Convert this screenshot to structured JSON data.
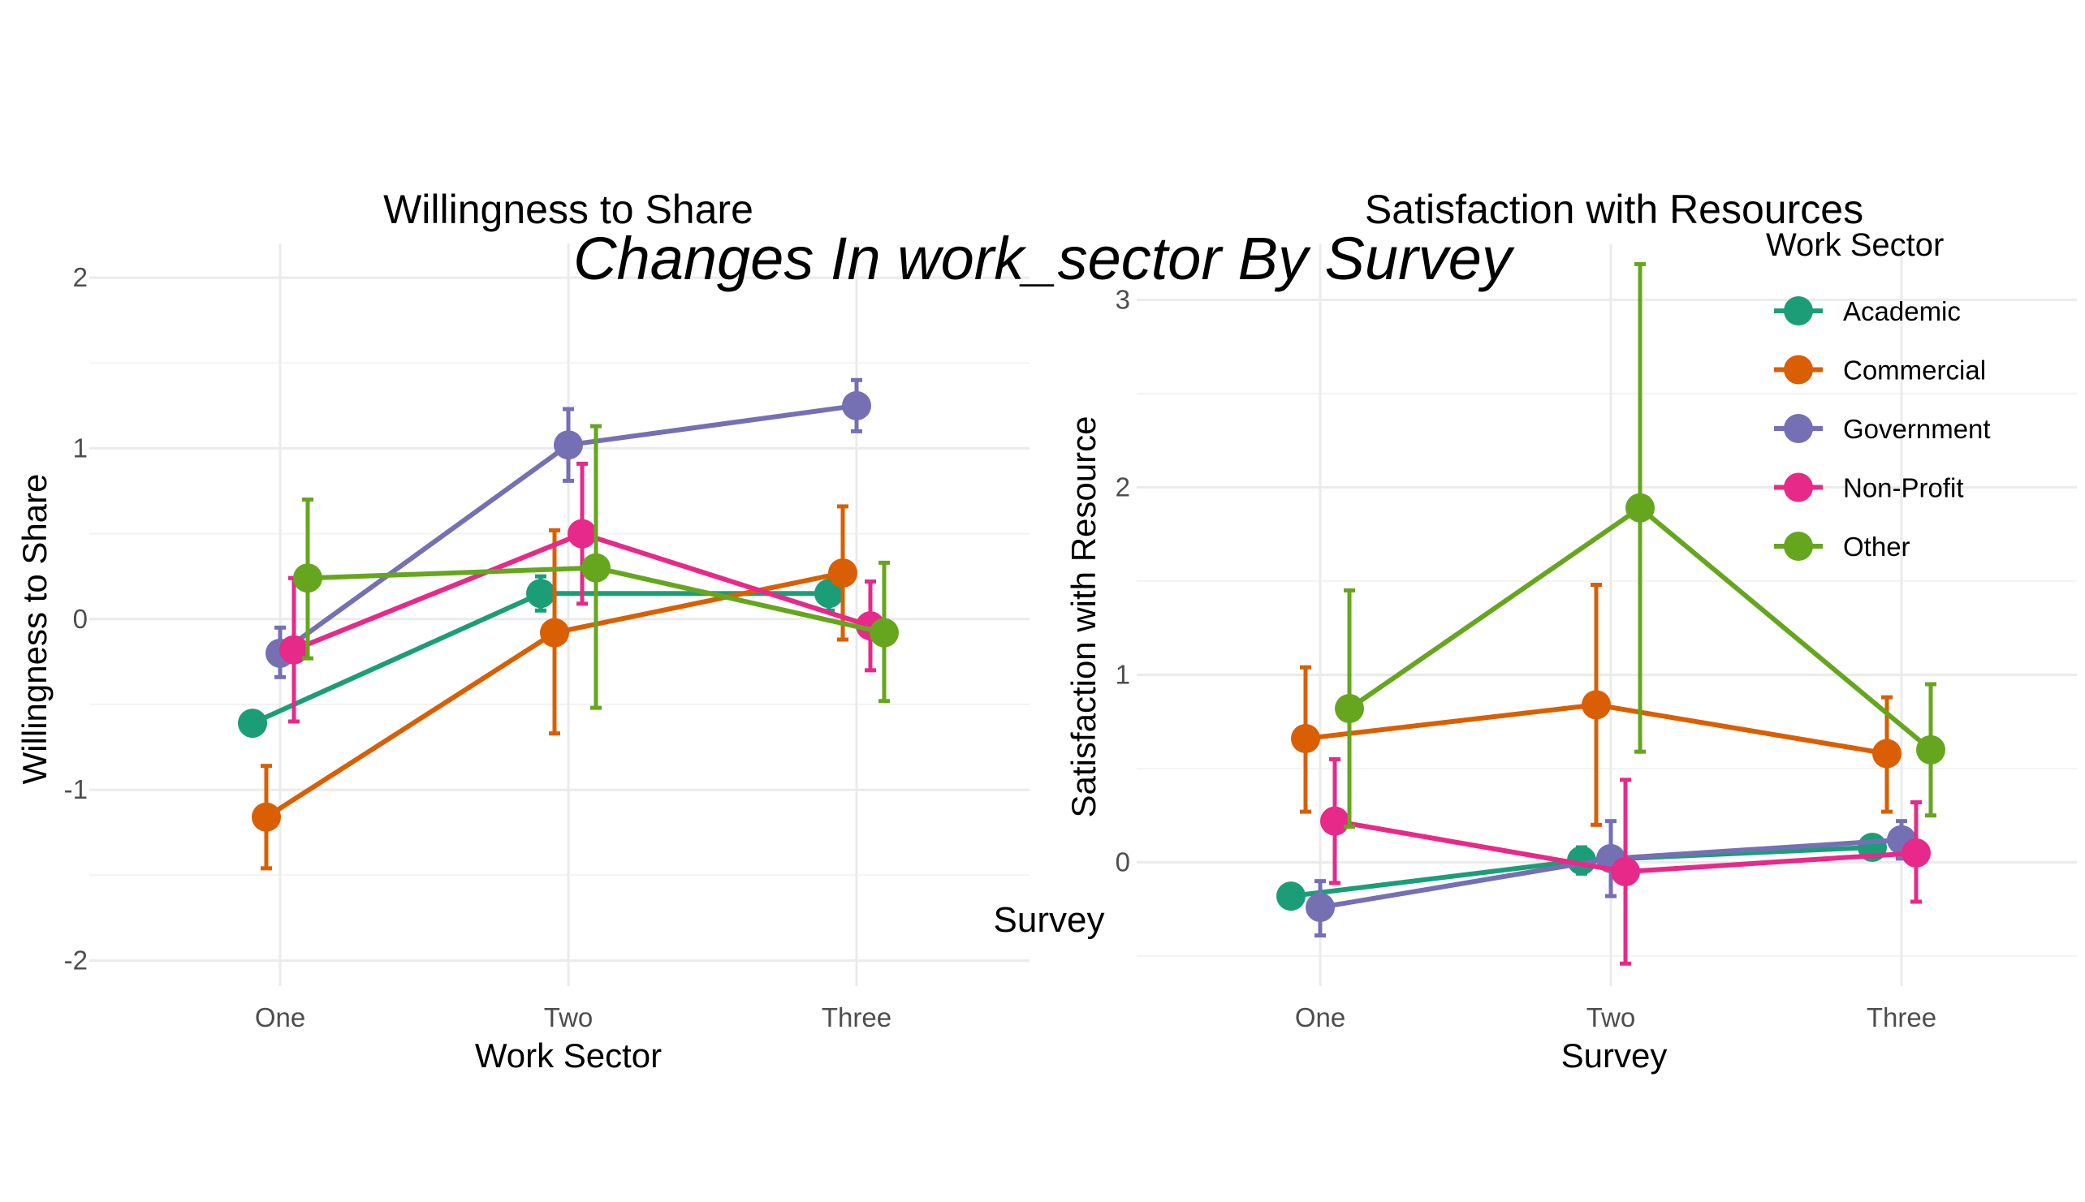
{
  "suptitle": "Changes In work_sector By Survey",
  "stray_label": "Survey",
  "colors": {
    "Academic": "#1b9e77",
    "Commercial": "#d95f02",
    "Government": "#7570b3",
    "Non-Profit": "#e7298a",
    "Other": "#66a61e"
  },
  "legend": {
    "title": "Work Sector",
    "entries": [
      "Academic",
      "Commercial",
      "Government",
      "Non-Profit",
      "Other"
    ]
  },
  "chart_data": [
    {
      "type": "line",
      "title": "Willingness to Share",
      "xlabel": "Work Sector",
      "ylabel": "Willingness to Share",
      "categories": [
        "One",
        "Two",
        "Three"
      ],
      "yticks": [
        -2,
        -1,
        0,
        1,
        2
      ],
      "ytick_labels": [
        "-2",
        "-1",
        "0",
        "1",
        "2"
      ],
      "ylim": [
        -2.15,
        2.2
      ],
      "grid": true,
      "error_bars": true,
      "series": [
        {
          "name": "Academic",
          "values": [
            -0.61,
            0.15,
            0.15
          ],
          "lower": [
            null,
            0.05,
            0.05
          ],
          "upper": [
            null,
            0.25,
            0.25
          ]
        },
        {
          "name": "Commercial",
          "values": [
            -1.16,
            -0.08,
            0.27
          ],
          "lower": [
            -1.46,
            -0.67,
            -0.12
          ],
          "upper": [
            -0.86,
            0.52,
            0.66
          ]
        },
        {
          "name": "Government",
          "values": [
            -0.2,
            1.02,
            1.25
          ],
          "lower": [
            -0.34,
            0.81,
            1.1
          ],
          "upper": [
            -0.05,
            1.23,
            1.4
          ]
        },
        {
          "name": "Non-Profit",
          "values": [
            -0.18,
            0.5,
            -0.04
          ],
          "lower": [
            -0.6,
            0.09,
            -0.3
          ],
          "upper": [
            0.24,
            0.91,
            0.22
          ]
        },
        {
          "name": "Other",
          "values": [
            0.24,
            0.3,
            -0.08
          ],
          "lower": [
            -0.23,
            -0.52,
            -0.48
          ],
          "upper": [
            0.7,
            1.13,
            0.33
          ]
        }
      ]
    },
    {
      "type": "line",
      "title": "Satisfaction with Resources",
      "xlabel": "Survey",
      "ylabel": "Satisfaction with Resource",
      "categories": [
        "One",
        "Two",
        "Three"
      ],
      "yticks": [
        0,
        1,
        2,
        3
      ],
      "ytick_labels": [
        "0",
        "1",
        "2",
        "3"
      ],
      "ylim": [
        -0.66,
        3.3
      ],
      "grid": true,
      "error_bars": true,
      "series": [
        {
          "name": "Academic",
          "values": [
            -0.18,
            0.01,
            0.08
          ],
          "lower": [
            null,
            -0.06,
            0.02
          ],
          "upper": [
            null,
            0.08,
            0.14
          ]
        },
        {
          "name": "Commercial",
          "values": [
            0.66,
            0.84,
            0.58
          ],
          "lower": [
            0.27,
            0.2,
            0.27
          ],
          "upper": [
            1.04,
            1.48,
            0.88
          ]
        },
        {
          "name": "Government",
          "values": [
            -0.24,
            0.02,
            0.12
          ],
          "lower": [
            -0.39,
            -0.18,
            0.02
          ],
          "upper": [
            -0.1,
            0.22,
            0.22
          ]
        },
        {
          "name": "Non-Profit",
          "values": [
            0.22,
            -0.05,
            0.05
          ],
          "lower": [
            -0.11,
            -0.54,
            -0.21
          ],
          "upper": [
            0.55,
            0.44,
            0.32
          ]
        },
        {
          "name": "Other",
          "values": [
            0.82,
            1.89,
            0.6
          ],
          "lower": [
            0.19,
            0.59,
            0.25
          ],
          "upper": [
            1.45,
            3.19,
            0.95
          ]
        }
      ]
    }
  ]
}
